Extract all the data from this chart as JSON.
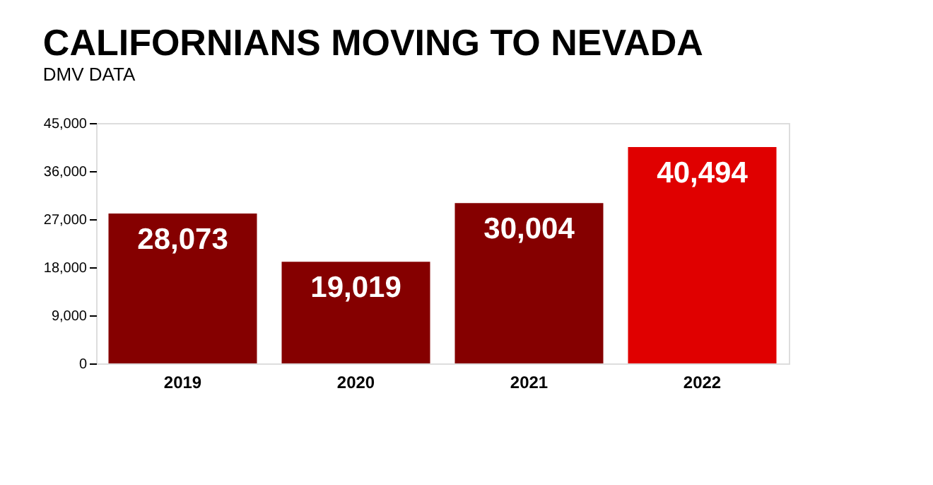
{
  "chart_data": {
    "type": "bar",
    "title": "CALIFORNIANS MOVING TO NEVADA",
    "subtitle": "DMV DATA",
    "categories": [
      "2019",
      "2020",
      "2021",
      "2022"
    ],
    "values": [
      28073,
      19019,
      30004,
      40494
    ],
    "value_labels": [
      "28,073",
      "19,019",
      "30,004",
      "40,494"
    ],
    "colors": [
      "#850000",
      "#850000",
      "#850000",
      "#e00000"
    ],
    "ylim": [
      0,
      45000
    ],
    "yticks": [
      0,
      {
        "value": 9000,
        "label": "9,000"
      },
      {
        "value": 18000,
        "label": "18,000"
      },
      {
        "value": 27000,
        "label": "27,000"
      },
      {
        "value": 36000,
        "label": "36,000"
      },
      {
        "value": 45000,
        "label": "45,000"
      }
    ],
    "grid": false
  }
}
